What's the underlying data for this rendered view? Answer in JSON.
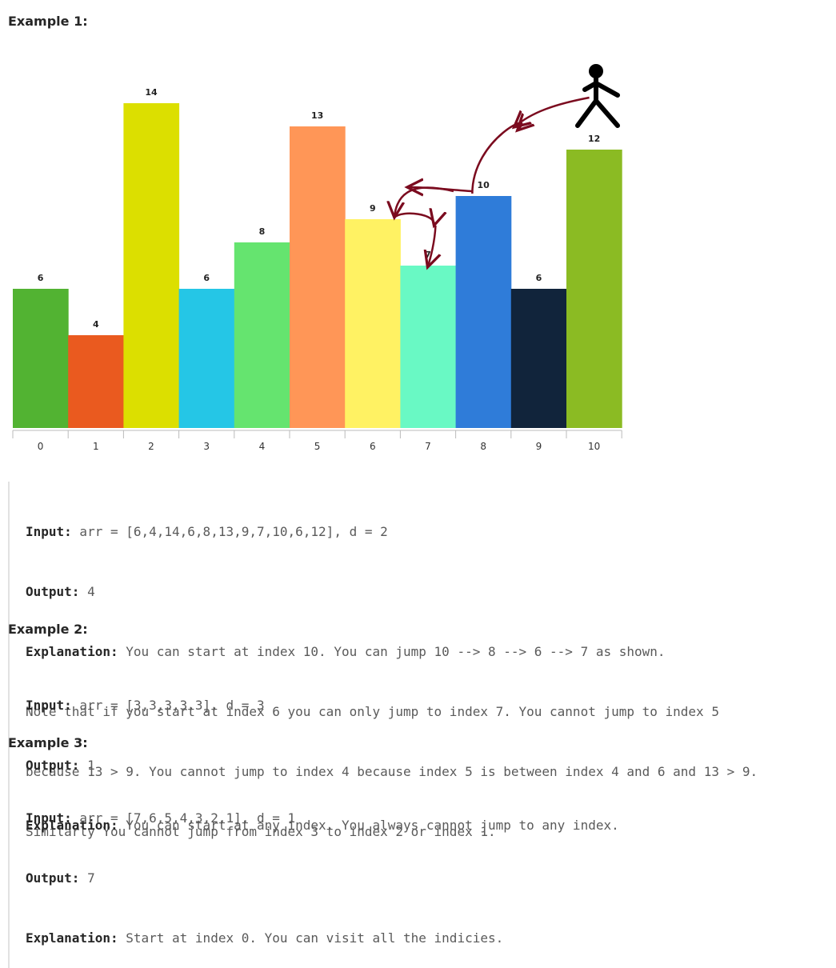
{
  "example1": {
    "heading": "Example 1:",
    "input_label": "Input:",
    "input_value": " arr = [6,4,14,6,8,13,9,7,10,6,12], d = 2",
    "output_label": "Output:",
    "output_value": " 4",
    "explanation_label": "Explanation:",
    "explanation_value": " You can start at index 10. You can jump 10 --> 8 --> 6 --> 7 as shown.",
    "explanation_lines": [
      "Note that if you start at index 6 you can only jump to index 7. You cannot jump to index 5",
      "because 13 > 9. You cannot jump to index 4 because index 5 is between index 4 and 6 and 13 > 9.",
      "Similarly You cannot jump from index 3 to index 2 or index 1."
    ]
  },
  "example2": {
    "heading": "Example 2:",
    "input_label": "Input:",
    "input_value": " arr = [3,3,3,3,3], d = 3",
    "output_label": "Output:",
    "output_value": " 1",
    "explanation_label": "Explanation:",
    "explanation_value": " You can start at any index. You always cannot jump to any index."
  },
  "example3": {
    "heading": "Example 3:",
    "input_label": "Input:",
    "input_value": " arr = [7,6,5,4,3,2,1], d = 1",
    "output_label": "Output:",
    "output_value": " 7",
    "explanation_label": "Explanation:",
    "explanation_value": " Start at index 0. You can visit all the indicies."
  },
  "chart_data": {
    "type": "bar",
    "categories": [
      "0",
      "1",
      "2",
      "3",
      "4",
      "5",
      "6",
      "7",
      "8",
      "9",
      "10"
    ],
    "values": [
      6,
      4,
      14,
      6,
      8,
      13,
      9,
      7,
      10,
      6,
      12
    ],
    "data_labels": [
      "6",
      "4",
      "14",
      "6",
      "8",
      "13",
      "9",
      "7",
      "10",
      "6",
      "12"
    ],
    "colors": [
      "#52b332",
      "#ea5a1f",
      "#dcdf00",
      "#25c6e6",
      "#65e46f",
      "#ff9657",
      "#fff263",
      "#69f9c4",
      "#2f7cd9",
      "#11243b",
      "#8bbb23"
    ],
    "ylim": [
      0,
      14
    ],
    "grid": false,
    "jump_path": [
      10,
      8,
      6,
      7
    ],
    "arrow_color": "#7b0b1f",
    "title": "",
    "xlabel": "",
    "ylabel": ""
  }
}
